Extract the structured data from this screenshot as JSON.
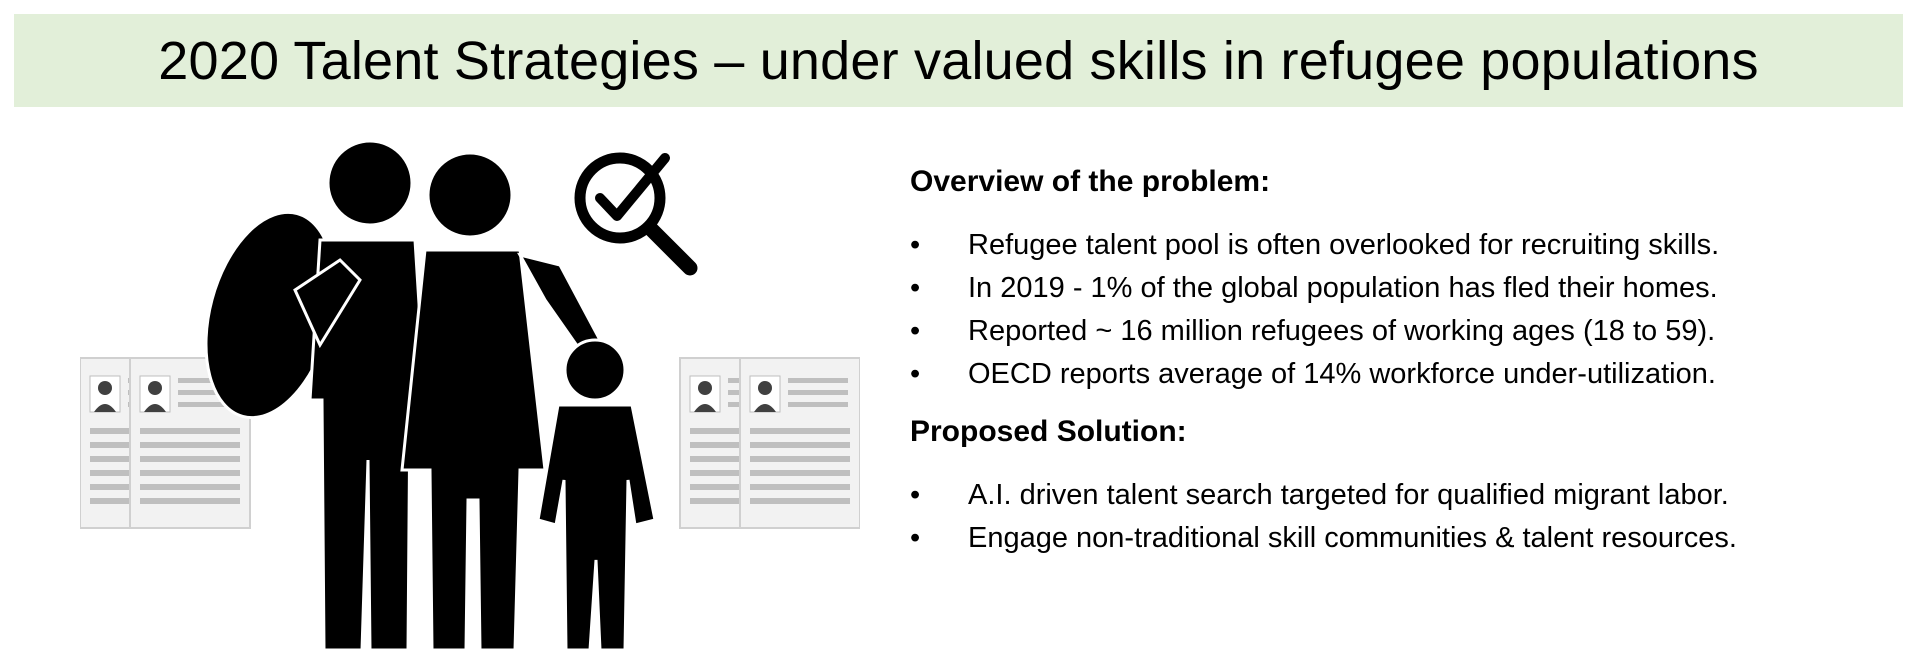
{
  "slide": {
    "title": "2020 Talent Strategies – under valued skills in refugee populations",
    "colors": {
      "banner": "#e2efd9",
      "text": "#000000",
      "resume_gray": "#bfbfbf"
    }
  },
  "illustration": {
    "icons": [
      "family-icon",
      "magnifier-check-icon",
      "resume-icon"
    ]
  },
  "overview": {
    "heading": "Overview of the problem:",
    "bullet_glyph": "•",
    "items": [
      "Refugee talent pool is often overlooked for recruiting skills.",
      "In 2019 - 1% of the global population has fled their homes.",
      "Reported ~ 16 million refugees of working ages (18 to 59).",
      "OECD reports average of 14% workforce under-utilization."
    ]
  },
  "solution": {
    "heading": "Proposed Solution:",
    "bullet_glyph": "•",
    "items": [
      "A.I. driven talent search targeted for qualified migrant labor.",
      "Engage non-traditional skill communities & talent resources."
    ]
  }
}
